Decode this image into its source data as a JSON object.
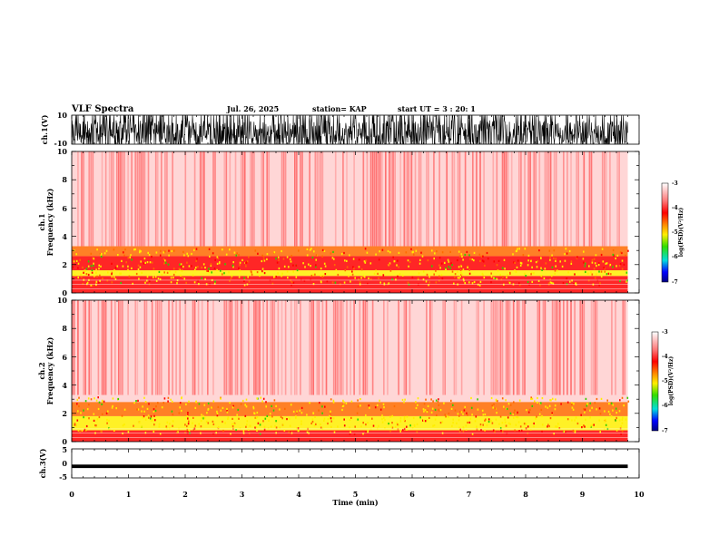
{
  "header": {
    "title": "VLF Spectra",
    "date": "Jul. 26, 2025",
    "station": "station= KAP",
    "start_time": "start UT =  3 : 20: 1"
  },
  "chart_data": [
    {
      "type": "line",
      "name": "ch1-waveform",
      "ylabel": "ch.1(V)",
      "ylim": [
        -10,
        10
      ],
      "yticks": [
        "10",
        "-10"
      ],
      "xlim": [
        0,
        10
      ],
      "note": "dense waveform, amplitude mostly clipped near full scale"
    },
    {
      "type": "heatmap",
      "name": "ch1-spectrogram",
      "ylabel_top": "ch.1",
      "ylabel": "Frequency (kHz)",
      "ylim": [
        0,
        10
      ],
      "yticks": [
        "0",
        "2",
        "4",
        "6",
        "8",
        "10"
      ],
      "xlim": [
        0,
        9.8
      ],
      "colorbar": {
        "label": "log(PSD)(V²/Hz)",
        "range": [
          -7,
          -3
        ],
        "ticks": [
          "-3",
          "-4",
          "-5",
          "-6",
          "-7"
        ]
      },
      "bands_khz": [
        {
          "from": 0,
          "to": 1.2,
          "level": "red"
        },
        {
          "from": 1.2,
          "to": 1.6,
          "level": "yellow"
        },
        {
          "from": 1.6,
          "to": 2.6,
          "level": "red"
        },
        {
          "from": 2.6,
          "to": 3.3,
          "level": "orange"
        },
        {
          "from": 3.3,
          "to": 10,
          "level": "faint"
        }
      ]
    },
    {
      "type": "heatmap",
      "name": "ch2-spectrogram",
      "ylabel_top": "ch.2",
      "ylabel": "Frequency (kHz)",
      "ylim": [
        0,
        10
      ],
      "yticks": [
        "0",
        "2",
        "4",
        "6",
        "8",
        "10"
      ],
      "xlim": [
        0,
        9.8
      ],
      "colorbar": {
        "label": "log(PSD)(V²/Hz)",
        "range": [
          -7,
          -3
        ],
        "ticks": [
          "-3",
          "-4",
          "-5",
          "-6",
          "-7"
        ]
      },
      "bands_khz": [
        {
          "from": 0,
          "to": 0.8,
          "level": "red"
        },
        {
          "from": 0.8,
          "to": 1.8,
          "level": "yellow"
        },
        {
          "from": 1.8,
          "to": 2.8,
          "level": "orange"
        },
        {
          "from": 2.8,
          "to": 10,
          "level": "faint"
        }
      ]
    },
    {
      "type": "line",
      "name": "ch3-waveform",
      "ylabel": "ch.3(V)",
      "ylim": [
        -5,
        5
      ],
      "yticks": [
        "5",
        "0",
        "-5"
      ],
      "xlim": [
        0,
        10
      ],
      "note": "narrow band of about ±0.6 V centered near -1 V"
    }
  ],
  "xaxis": {
    "label": "Time (min)",
    "ticks": [
      "0",
      "1",
      "2",
      "3",
      "4",
      "5",
      "6",
      "7",
      "8",
      "9",
      "10"
    ]
  },
  "colors": {
    "faint": "#ff6a6a",
    "red": "#ff0000",
    "orange": "#ff6a00",
    "yellow": "#ffee00",
    "green": "#33cc00",
    "cyan": "#00ffff",
    "blue": "#0000ff"
  }
}
